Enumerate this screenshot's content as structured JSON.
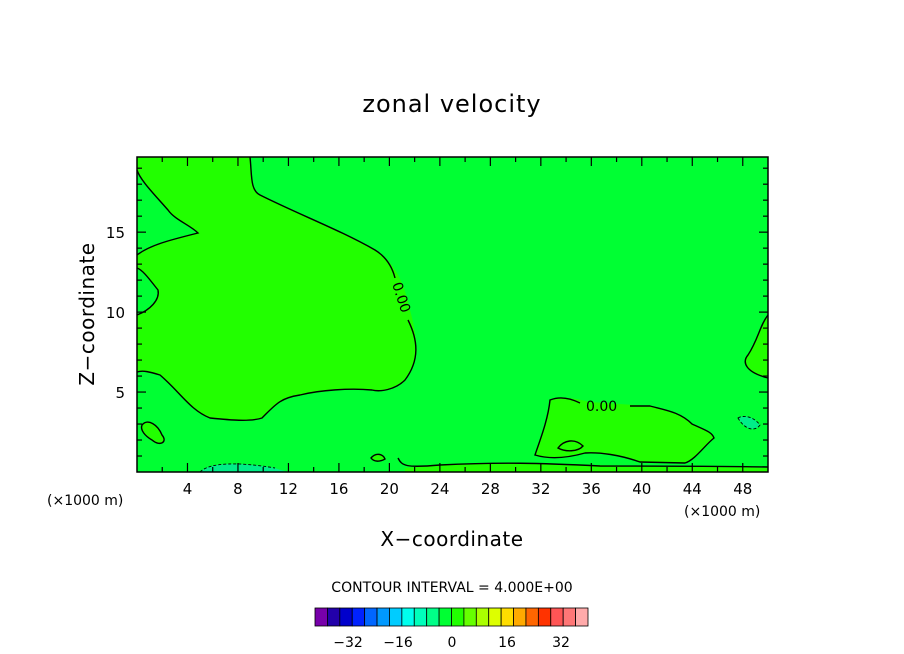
{
  "chart_data": {
    "type": "contour",
    "title": "zonal velocity",
    "xlabel": "X−coordinate",
    "ylabel": "Z−coordinate",
    "x_unit_left": "(×1000 m)",
    "x_unit_right": "(×1000 m)",
    "xlim": [
      0,
      50
    ],
    "ylim": [
      0,
      19.7
    ],
    "x_ticks": [
      4,
      8,
      12,
      16,
      20,
      24,
      28,
      32,
      36,
      40,
      44,
      48
    ],
    "y_ticks": [
      5,
      10,
      15
    ],
    "contour_interval_text": "CONTOUR INTERVAL = 4.000E+00",
    "contour_label": "0.00",
    "colors": {
      "background_field": "#00ff33",
      "positive_region": "#22ff00",
      "negative_patch": "#00ee88"
    },
    "colorbar": {
      "colors": [
        "#7700aa",
        "#2200aa",
        "#0000cc",
        "#0022ff",
        "#0066ff",
        "#0099ff",
        "#00ccff",
        "#00ffee",
        "#00ffbb",
        "#00ff88",
        "#00ff33",
        "#22ff00",
        "#66ff00",
        "#aaff00",
        "#ddff00",
        "#ffdd00",
        "#ffaa00",
        "#ff6600",
        "#ff3300",
        "#ff5555",
        "#ff7777",
        "#ffaaaa"
      ],
      "tick_labels": [
        "−32",
        "−16",
        "0",
        "16",
        "32"
      ]
    }
  }
}
